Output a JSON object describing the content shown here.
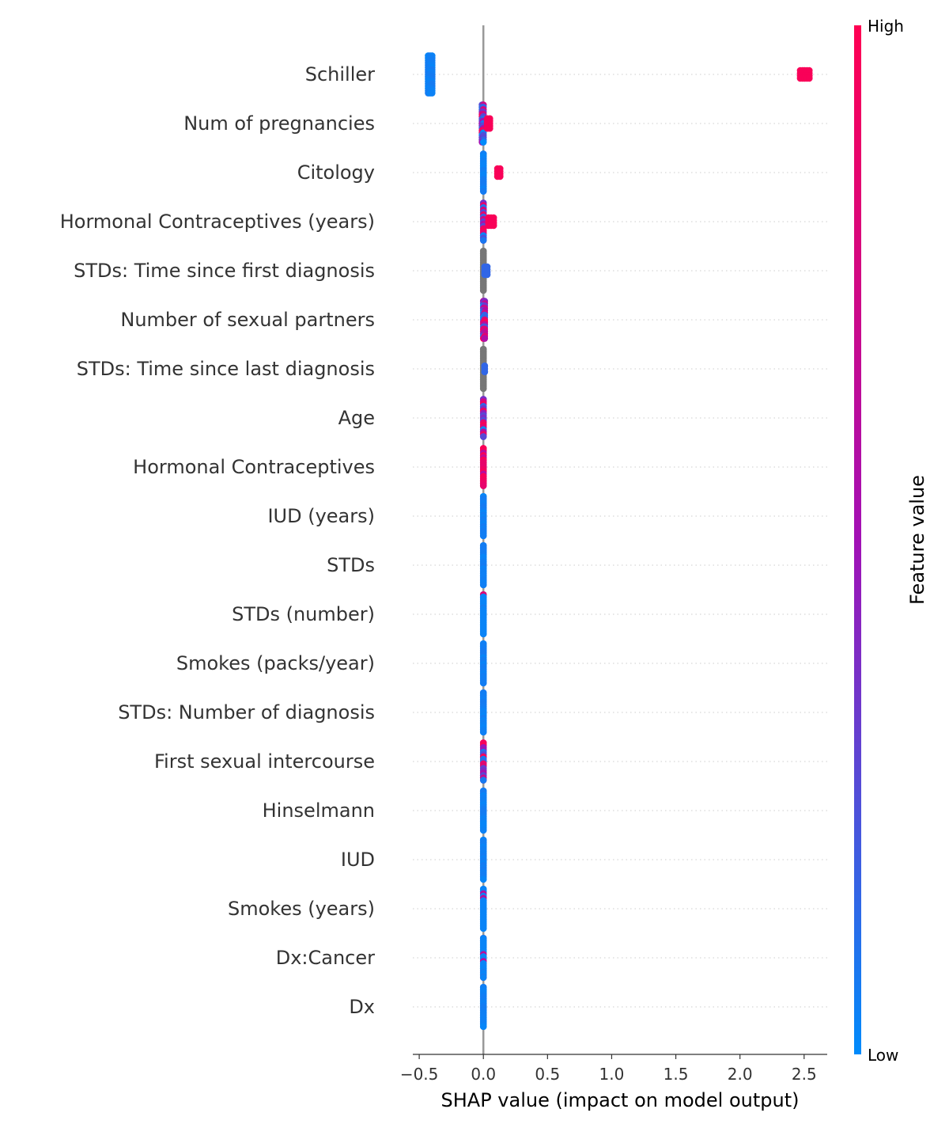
{
  "chart_data": {
    "type": "scatter",
    "subtype": "shap-beeswarm",
    "xlabel": "SHAP value (impact on model output)",
    "xlim": [
      -0.55,
      2.68
    ],
    "xticks": [
      -0.5,
      0.0,
      0.5,
      1.0,
      1.5,
      2.0,
      2.5
    ],
    "xtick_labels": [
      "−0.5",
      "0.0",
      "0.5",
      "1.0",
      "1.5",
      "2.0",
      "2.5"
    ],
    "colorbar": {
      "title": "Feature value",
      "high_label": "High",
      "low_label": "Low",
      "low_color": "#008bfb",
      "mid_color": "#a210b5",
      "high_color": "#ff0052"
    },
    "missing_color": "#777777",
    "zero_line_color": "#999999",
    "features": [
      {
        "name": "Schiller",
        "groups": [
          {
            "x": -0.43,
            "x2": -0.4,
            "halfwidth": 0.38,
            "color": "low"
          },
          {
            "x": 2.47,
            "x2": 2.54,
            "halfwidth": 0.08,
            "color": "high"
          }
        ]
      },
      {
        "name": "Num of pregnancies",
        "groups": [
          {
            "x": -0.01,
            "x2": 0.0,
            "halfwidth": 0.38,
            "color": "mix"
          },
          {
            "x": 0.03,
            "x2": 0.05,
            "halfwidth": 0.1,
            "color": "high"
          }
        ]
      },
      {
        "name": "Citology",
        "groups": [
          {
            "x": 0.0,
            "x2": 0.0,
            "halfwidth": 0.38,
            "color": "low"
          },
          {
            "x": 0.11,
            "x2": 0.13,
            "halfwidth": 0.08,
            "color": "high"
          }
        ]
      },
      {
        "name": "Hormonal Contraceptives (years)",
        "groups": [
          {
            "x": 0.0,
            "x2": 0.0,
            "halfwidth": 0.38,
            "color": "mix"
          },
          {
            "x": 0.04,
            "x2": 0.08,
            "halfwidth": 0.08,
            "color": "high"
          }
        ]
      },
      {
        "name": "STDs: Time since first diagnosis",
        "groups": [
          {
            "x": 0.0,
            "x2": 0.0,
            "halfwidth": 0.4,
            "color": "missing"
          },
          {
            "x": 0.01,
            "x2": 0.03,
            "halfwidth": 0.08,
            "color": "blue"
          }
        ]
      },
      {
        "name": "Number of sexual partners",
        "groups": [
          {
            "x": 0.0,
            "x2": 0.01,
            "halfwidth": 0.38,
            "color": "mix"
          }
        ]
      },
      {
        "name": "STDs: Time since last diagnosis",
        "groups": [
          {
            "x": 0.0,
            "x2": 0.0,
            "halfwidth": 0.4,
            "color": "missing"
          },
          {
            "x": 0.01,
            "x2": 0.01,
            "halfwidth": 0.06,
            "color": "blue"
          }
        ]
      },
      {
        "name": "Age",
        "groups": [
          {
            "x": 0.0,
            "x2": 0.0,
            "halfwidth": 0.38,
            "color": "mix"
          }
        ]
      },
      {
        "name": "Hormonal Contraceptives",
        "groups": [
          {
            "x": 0.0,
            "x2": 0.0,
            "halfwidth": 0.38,
            "color": "highmix"
          }
        ]
      },
      {
        "name": "IUD (years)",
        "groups": [
          {
            "x": 0.0,
            "x2": 0.0,
            "halfwidth": 0.4,
            "color": "low"
          }
        ]
      },
      {
        "name": "STDs",
        "groups": [
          {
            "x": 0.0,
            "x2": 0.0,
            "halfwidth": 0.4,
            "color": "low"
          }
        ]
      },
      {
        "name": "STDs (number)",
        "groups": [
          {
            "x": 0.0,
            "x2": 0.0,
            "halfwidth": 0.4,
            "color": "lowmix"
          }
        ]
      },
      {
        "name": "Smokes (packs/year)",
        "groups": [
          {
            "x": 0.0,
            "x2": 0.0,
            "halfwidth": 0.4,
            "color": "low"
          }
        ]
      },
      {
        "name": "STDs: Number of diagnosis",
        "groups": [
          {
            "x": 0.0,
            "x2": 0.0,
            "halfwidth": 0.4,
            "color": "low"
          }
        ]
      },
      {
        "name": "First sexual intercourse",
        "groups": [
          {
            "x": 0.0,
            "x2": 0.0,
            "halfwidth": 0.38,
            "color": "mix"
          }
        ]
      },
      {
        "name": "Hinselmann",
        "groups": [
          {
            "x": 0.0,
            "x2": 0.0,
            "halfwidth": 0.4,
            "color": "low"
          }
        ]
      },
      {
        "name": "IUD",
        "groups": [
          {
            "x": 0.0,
            "x2": 0.0,
            "halfwidth": 0.4,
            "color": "low"
          }
        ]
      },
      {
        "name": "Smokes (years)",
        "groups": [
          {
            "x": 0.0,
            "x2": 0.0,
            "halfwidth": 0.4,
            "color": "lowmix"
          }
        ]
      },
      {
        "name": "Dx:Cancer",
        "groups": [
          {
            "x": 0.0,
            "x2": 0.0,
            "halfwidth": 0.4,
            "color": "lowmix"
          }
        ]
      },
      {
        "name": "Dx",
        "groups": [
          {
            "x": 0.0,
            "x2": 0.0,
            "halfwidth": 0.4,
            "color": "low"
          }
        ]
      }
    ]
  }
}
